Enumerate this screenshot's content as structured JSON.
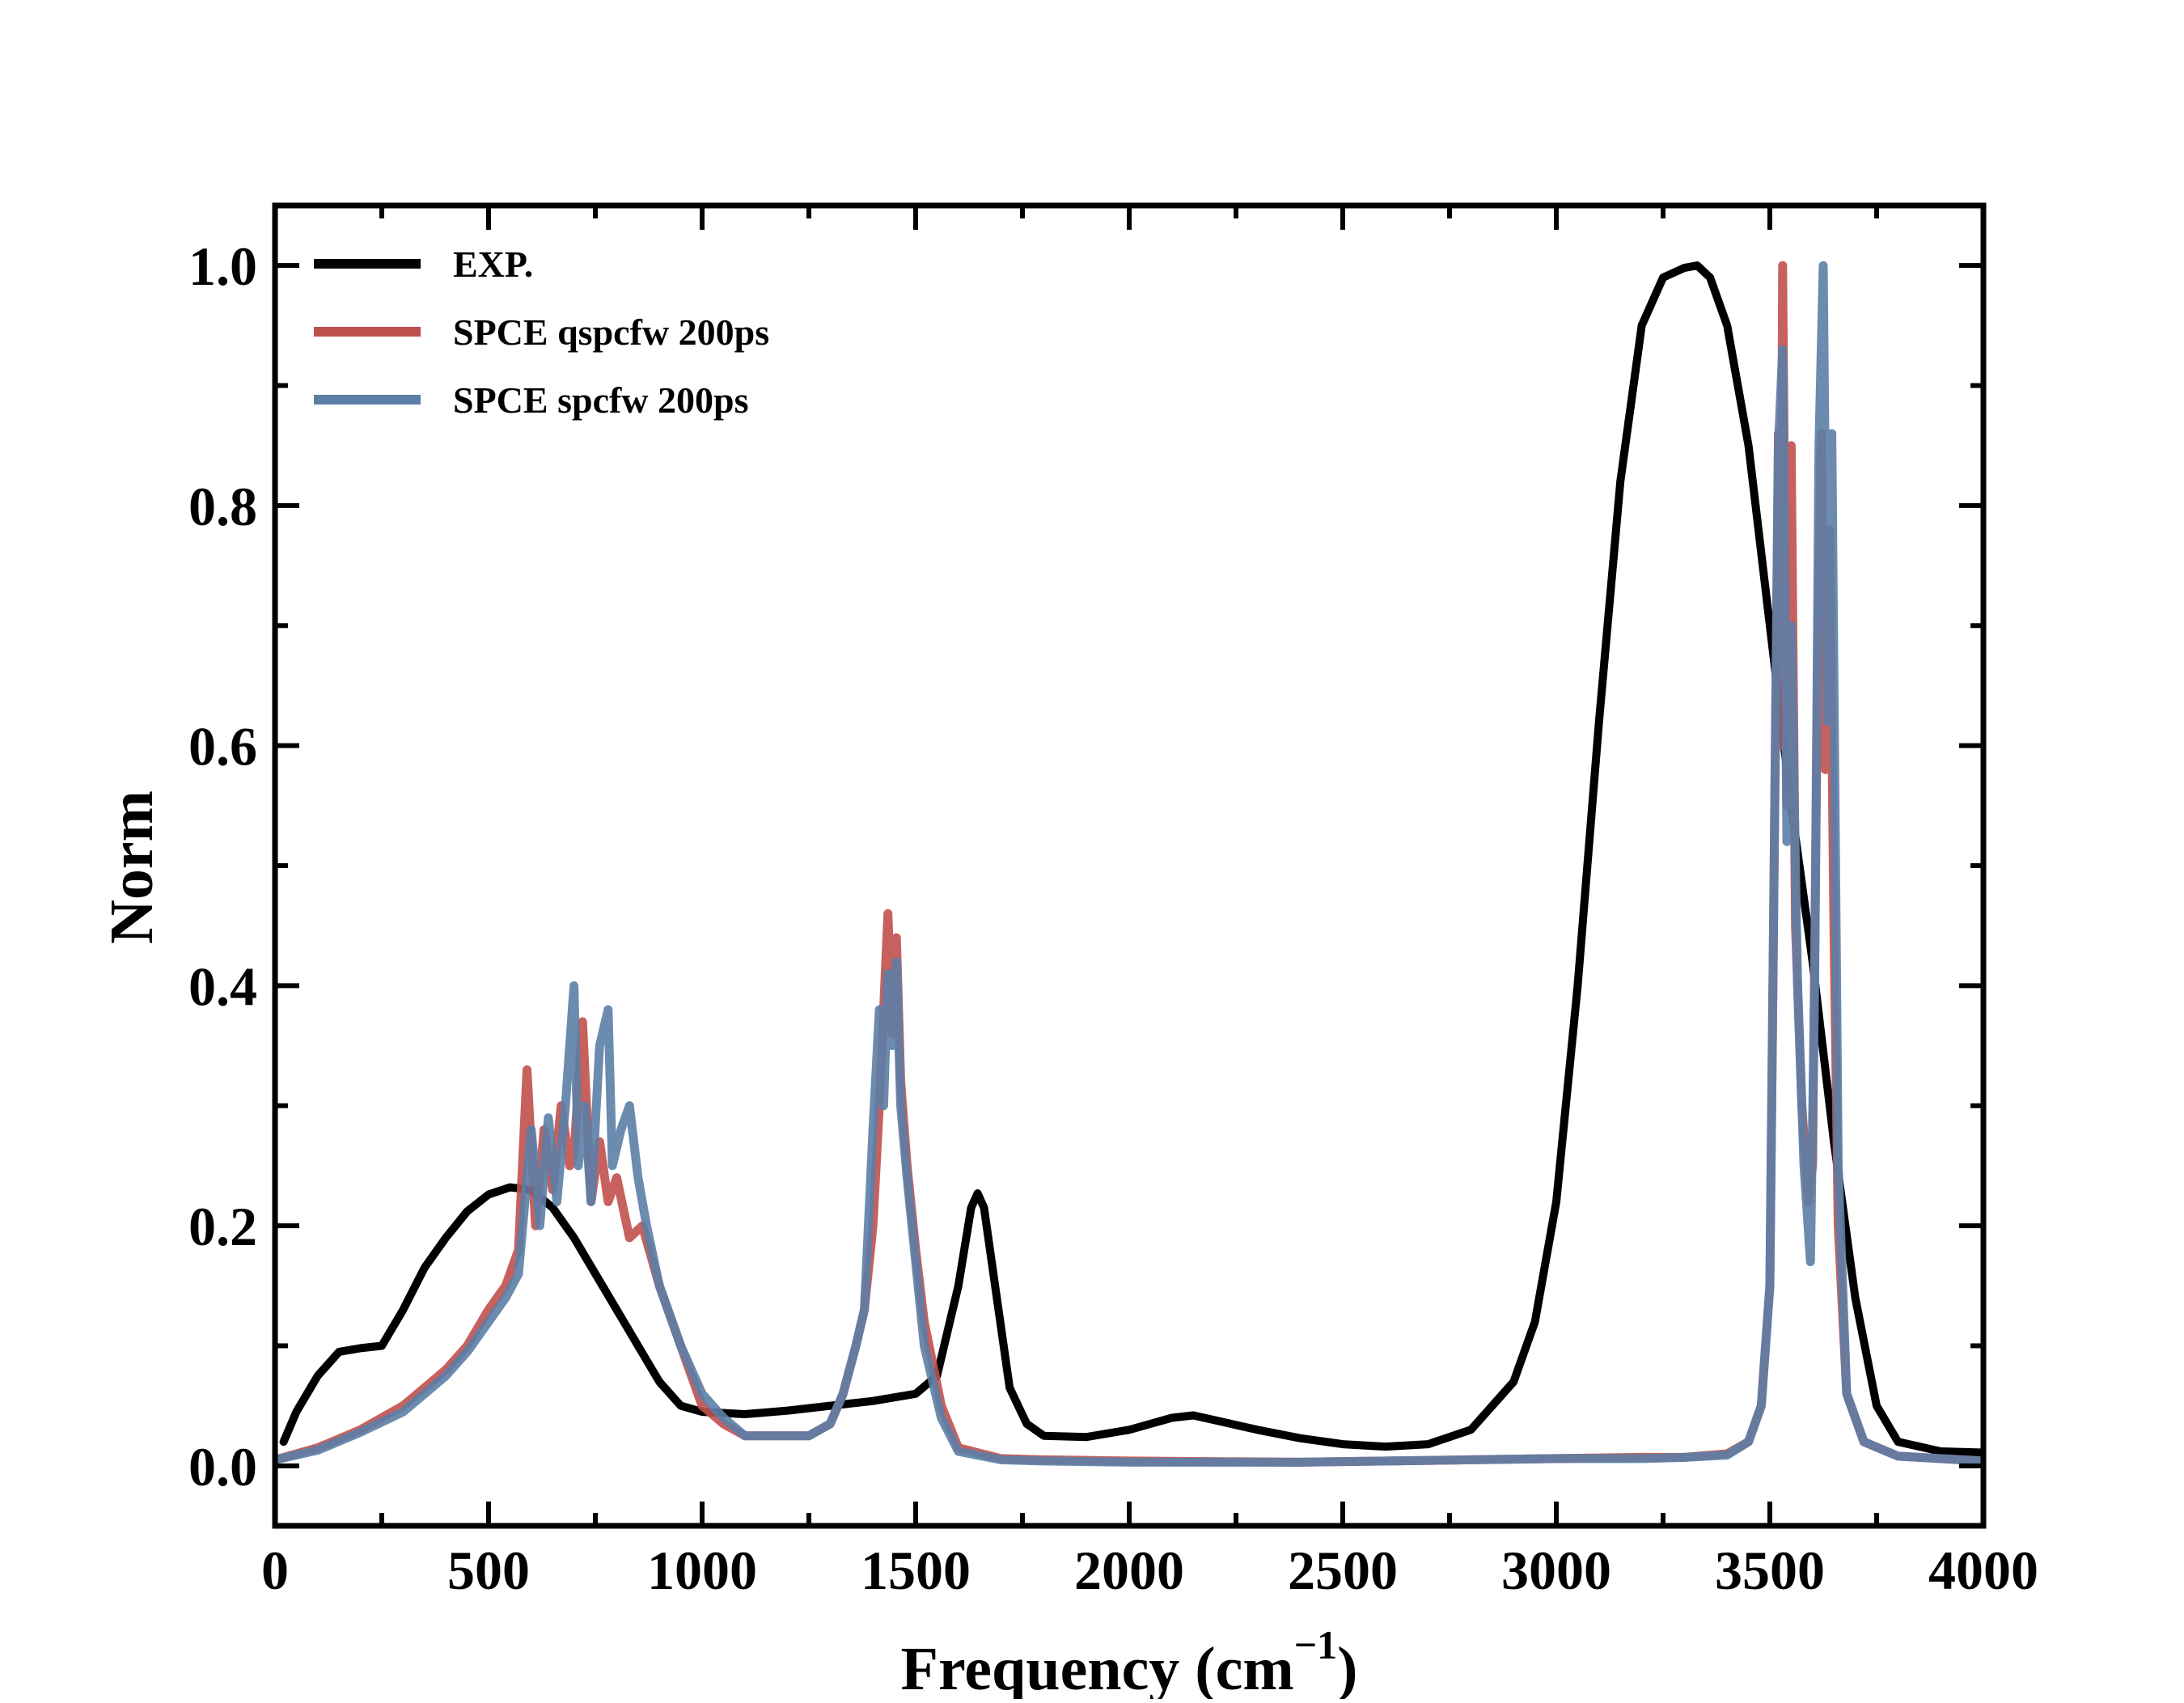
{
  "chart_data": {
    "type": "line",
    "title": "",
    "xlabel": "Frequency (cm",
    "xlabel_superscript": "−1",
    "xlabel_close": ")",
    "ylabel": "Norm",
    "xlim": [
      0,
      4000
    ],
    "ylim": [
      -0.05,
      1.05
    ],
    "x_ticks": [
      0,
      500,
      1000,
      1500,
      2000,
      2500,
      3000,
      3500,
      4000
    ],
    "x_tick_labels": [
      "0",
      "500",
      "1000",
      "1500",
      "2000",
      "2500",
      "3000",
      "3500",
      "4000"
    ],
    "y_ticks": [
      0.0,
      0.2,
      0.4,
      0.6,
      0.8,
      1.0
    ],
    "y_tick_labels": [
      "0.0",
      "0.2",
      "0.4",
      "0.6",
      "0.8",
      "1.0"
    ],
    "grid": false,
    "legend_position": "top-left",
    "series": [
      {
        "name": "EXP.",
        "color": "#000000",
        "x": [
          20,
          50,
          100,
          150,
          200,
          250,
          300,
          350,
          400,
          450,
          500,
          550,
          600,
          650,
          700,
          750,
          800,
          850,
          900,
          950,
          1000,
          1100,
          1200,
          1300,
          1400,
          1500,
          1550,
          1600,
          1630,
          1645,
          1660,
          1690,
          1720,
          1760,
          1800,
          1900,
          2000,
          2100,
          2150,
          2200,
          2300,
          2400,
          2500,
          2600,
          2700,
          2800,
          2900,
          2950,
          3000,
          3050,
          3100,
          3150,
          3200,
          3250,
          3300,
          3330,
          3360,
          3400,
          3450,
          3500,
          3550,
          3600,
          3650,
          3700,
          3750,
          3800,
          3900,
          4000
        ],
        "y": [
          0.02,
          0.045,
          0.075,
          0.095,
          0.098,
          0.1,
          0.13,
          0.165,
          0.19,
          0.212,
          0.226,
          0.232,
          0.23,
          0.215,
          0.19,
          0.16,
          0.13,
          0.1,
          0.07,
          0.05,
          0.045,
          0.043,
          0.046,
          0.05,
          0.054,
          0.06,
          0.075,
          0.15,
          0.215,
          0.227,
          0.215,
          0.14,
          0.065,
          0.035,
          0.025,
          0.024,
          0.03,
          0.04,
          0.042,
          0.038,
          0.03,
          0.023,
          0.018,
          0.016,
          0.018,
          0.03,
          0.07,
          0.12,
          0.22,
          0.4,
          0.62,
          0.82,
          0.95,
          0.99,
          0.998,
          1.0,
          0.99,
          0.95,
          0.85,
          0.7,
          0.55,
          0.42,
          0.27,
          0.14,
          0.05,
          0.02,
          0.012,
          0.011
        ]
      },
      {
        "name": "SPCE qspcfw 200ps",
        "color": "#c0504d",
        "x": [
          0,
          100,
          200,
          300,
          400,
          450,
          500,
          540,
          570,
          590,
          610,
          630,
          650,
          670,
          690,
          700,
          720,
          740,
          760,
          780,
          800,
          830,
          860,
          900,
          950,
          1000,
          1050,
          1100,
          1150,
          1200,
          1250,
          1300,
          1330,
          1360,
          1380,
          1400,
          1415,
          1425,
          1435,
          1445,
          1455,
          1465,
          1480,
          1500,
          1520,
          1560,
          1600,
          1700,
          1800,
          2000,
          2400,
          2800,
          3000,
          3200,
          3300,
          3400,
          3450,
          3480,
          3500,
          3510,
          3520,
          3525,
          3530,
          3540,
          3550,
          3560,
          3575,
          3590,
          3600,
          3610,
          3620,
          3630,
          3640,
          3650,
          3660,
          3680,
          3720,
          3800,
          4000
        ],
        "y": [
          0.005,
          0.015,
          0.03,
          0.05,
          0.08,
          0.1,
          0.13,
          0.15,
          0.18,
          0.33,
          0.2,
          0.28,
          0.23,
          0.3,
          0.25,
          0.26,
          0.37,
          0.22,
          0.27,
          0.22,
          0.24,
          0.19,
          0.2,
          0.15,
          0.1,
          0.05,
          0.035,
          0.025,
          0.025,
          0.025,
          0.025,
          0.035,
          0.06,
          0.1,
          0.13,
          0.2,
          0.3,
          0.38,
          0.46,
          0.36,
          0.44,
          0.32,
          0.25,
          0.18,
          0.12,
          0.05,
          0.015,
          0.006,
          0.005,
          0.004,
          0.003,
          0.005,
          0.006,
          0.007,
          0.007,
          0.01,
          0.02,
          0.05,
          0.15,
          0.5,
          0.86,
          0.6,
          1.0,
          0.55,
          0.85,
          0.45,
          0.3,
          0.22,
          0.25,
          0.6,
          0.86,
          0.58,
          0.78,
          0.45,
          0.2,
          0.06,
          0.02,
          0.008,
          0.004
        ]
      },
      {
        "name": "SPCE spcfw 200ps",
        "color": "#5b7ea6",
        "x": [
          0,
          100,
          200,
          300,
          400,
          450,
          500,
          540,
          570,
          600,
          620,
          640,
          660,
          680,
          700,
          710,
          725,
          740,
          760,
          780,
          790,
          810,
          830,
          850,
          870,
          900,
          950,
          1000,
          1050,
          1100,
          1150,
          1200,
          1250,
          1300,
          1330,
          1360,
          1380,
          1400,
          1415,
          1425,
          1435,
          1445,
          1455,
          1465,
          1480,
          1500,
          1520,
          1560,
          1600,
          1700,
          1800,
          2000,
          2400,
          2800,
          3000,
          3200,
          3300,
          3400,
          3450,
          3480,
          3500,
          3510,
          3520,
          3530,
          3540,
          3550,
          3565,
          3580,
          3595,
          3605,
          3615,
          3625,
          3635,
          3645,
          3660,
          3680,
          3720,
          3800,
          4000
        ],
        "y": [
          0.005,
          0.013,
          0.028,
          0.045,
          0.075,
          0.095,
          0.12,
          0.14,
          0.16,
          0.28,
          0.2,
          0.29,
          0.22,
          0.3,
          0.4,
          0.25,
          0.3,
          0.22,
          0.35,
          0.38,
          0.25,
          0.28,
          0.3,
          0.24,
          0.2,
          0.15,
          0.1,
          0.06,
          0.04,
          0.025,
          0.025,
          0.025,
          0.025,
          0.035,
          0.06,
          0.1,
          0.13,
          0.28,
          0.38,
          0.3,
          0.41,
          0.35,
          0.42,
          0.3,
          0.24,
          0.17,
          0.1,
          0.04,
          0.012,
          0.005,
          0.004,
          0.003,
          0.003,
          0.005,
          0.006,
          0.006,
          0.007,
          0.009,
          0.02,
          0.05,
          0.15,
          0.5,
          0.85,
          0.93,
          0.52,
          0.7,
          0.4,
          0.25,
          0.17,
          0.4,
          0.85,
          1.0,
          0.62,
          0.86,
          0.25,
          0.06,
          0.02,
          0.008,
          0.004
        ]
      }
    ]
  }
}
